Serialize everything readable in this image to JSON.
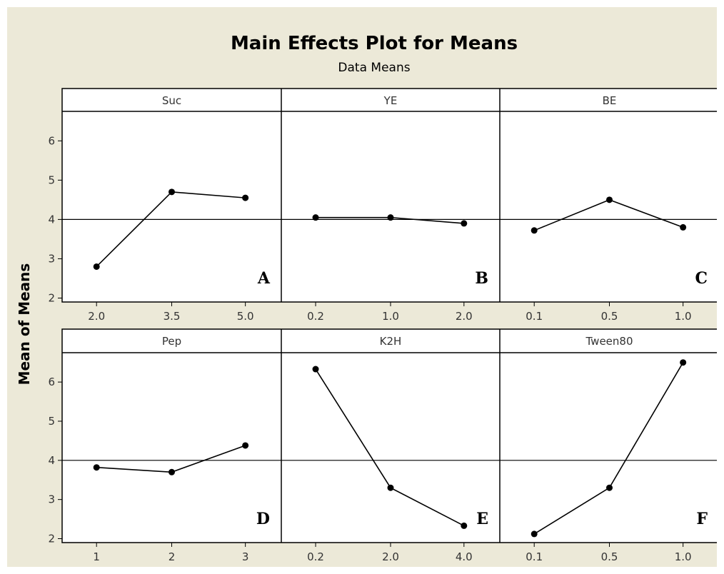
{
  "chart_data": {
    "type": "line",
    "title": "Main Effects Plot for Means",
    "subtitle": "Data Means",
    "ylabel": "Mean of Means",
    "ylim": [
      1.9,
      6.75
    ],
    "yticks": [
      2,
      3,
      4,
      5,
      6
    ],
    "reference_line": 4.0,
    "grid": false,
    "panels": [
      {
        "factor": "Suc",
        "letter": "A",
        "x": [
          "2.0",
          "3.5",
          "5.0"
        ],
        "values": [
          2.8,
          4.7,
          4.55
        ]
      },
      {
        "factor": "YE",
        "letter": "B",
        "x": [
          "0.2",
          "1.0",
          "2.0"
        ],
        "values": [
          4.05,
          4.05,
          3.9
        ]
      },
      {
        "factor": "BE",
        "letter": "C",
        "x": [
          "0.1",
          "0.5",
          "1.0"
        ],
        "values": [
          3.72,
          4.5,
          3.8
        ]
      },
      {
        "factor": "Pep",
        "letter": "D",
        "x": [
          "1",
          "2",
          "3"
        ],
        "values": [
          3.82,
          3.7,
          4.38
        ]
      },
      {
        "factor": "K2H",
        "letter": "E",
        "x": [
          "0.2",
          "2.0",
          "4.0"
        ],
        "values": [
          6.33,
          3.3,
          2.33
        ]
      },
      {
        "factor": "Tween80",
        "letter": "F",
        "x": [
          "0.1",
          "0.5",
          "1.0"
        ],
        "values": [
          2.12,
          3.3,
          6.5
        ]
      }
    ]
  }
}
